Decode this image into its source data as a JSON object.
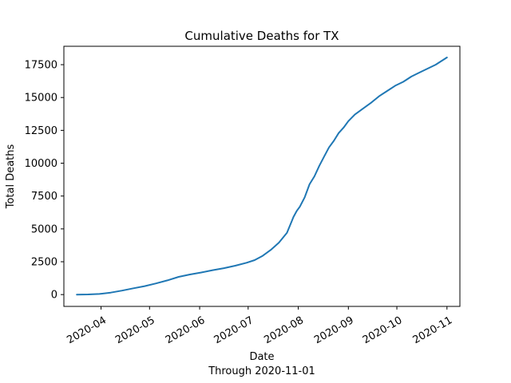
{
  "chart_data": {
    "type": "line",
    "title": "Cumulative Deaths for TX",
    "xlabel": "Date",
    "xlabel_sub": "Through 2020-11-01",
    "ylabel": "Total Deaths",
    "xlim": [
      "2020-03-09",
      "2020-11-09"
    ],
    "ylim": [
      -900,
      18900
    ],
    "grid": false,
    "x_ticks": [
      "2020-04-01",
      "2020-05-01",
      "2020-06-01",
      "2020-07-01",
      "2020-08-01",
      "2020-09-01",
      "2020-10-01",
      "2020-11-01"
    ],
    "x_tick_labels": [
      "2020-04",
      "2020-05",
      "2020-06",
      "2020-07",
      "2020-08",
      "2020-09",
      "2020-10",
      "2020-11"
    ],
    "y_ticks": [
      0,
      2500,
      5000,
      7500,
      10000,
      12500,
      15000,
      17500
    ],
    "y_tick_labels": [
      "0",
      "2500",
      "5000",
      "7500",
      "10000",
      "12500",
      "15000",
      "17500"
    ],
    "colors": {
      "series": "#1f77b4"
    },
    "series": [
      {
        "x": [
          "2020-03-17",
          "2020-03-24",
          "2020-03-31",
          "2020-04-07",
          "2020-04-14",
          "2020-04-21",
          "2020-04-28",
          "2020-05-05",
          "2020-05-12",
          "2020-05-19",
          "2020-05-26",
          "2020-06-02",
          "2020-06-09",
          "2020-06-16",
          "2020-06-23",
          "2020-06-30",
          "2020-07-05",
          "2020-07-10",
          "2020-07-15",
          "2020-07-20",
          "2020-07-25",
          "2020-07-28",
          "2020-07-29",
          "2020-07-31",
          "2020-08-02",
          "2020-08-05",
          "2020-08-08",
          "2020-08-11",
          "2020-08-14",
          "2020-08-17",
          "2020-08-20",
          "2020-08-23",
          "2020-08-26",
          "2020-08-29",
          "2020-09-01",
          "2020-09-05",
          "2020-09-10",
          "2020-09-15",
          "2020-09-20",
          "2020-09-25",
          "2020-09-30",
          "2020-10-05",
          "2020-10-10",
          "2020-10-15",
          "2020-10-20",
          "2020-10-25",
          "2020-11-01"
        ],
        "values": [
          0,
          10,
          50,
          150,
          300,
          480,
          640,
          850,
          1080,
          1350,
          1530,
          1680,
          1860,
          2010,
          2200,
          2420,
          2620,
          2950,
          3400,
          3950,
          4700,
          5600,
          5900,
          6350,
          6700,
          7400,
          8400,
          9000,
          9800,
          10500,
          11200,
          11700,
          12300,
          12700,
          13200,
          13700,
          14150,
          14600,
          15100,
          15500,
          15900,
          16200,
          16600,
          16900,
          17200,
          17500,
          18050
        ]
      }
    ]
  }
}
